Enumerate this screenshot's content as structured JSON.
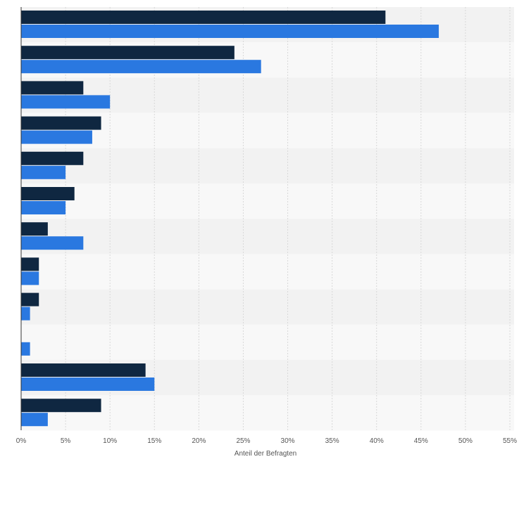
{
  "chart_data": {
    "type": "bar",
    "orientation": "horizontal",
    "xlabel": "Anteil der Befragten",
    "x_tick_labels": [
      "0%",
      "5%",
      "10%",
      "15%",
      "20%",
      "25%",
      "30%",
      "35%",
      "40%",
      "45%",
      "50%",
      "55%"
    ],
    "xlim": [
      0,
      55
    ],
    "grid": true,
    "legend": "none",
    "categories": [
      "",
      "",
      "",
      "",
      "",
      "",
      "",
      "",
      "",
      "",
      "",
      ""
    ],
    "series": [
      {
        "color": "#0f2741",
        "values": [
          41,
          24,
          7,
          9,
          7,
          6,
          3,
          2,
          2,
          0,
          14,
          9
        ]
      },
      {
        "color": "#2a78e0",
        "values": [
          47,
          27,
          10,
          8,
          5,
          5,
          7,
          2,
          1,
          1,
          15,
          3
        ]
      }
    ]
  }
}
